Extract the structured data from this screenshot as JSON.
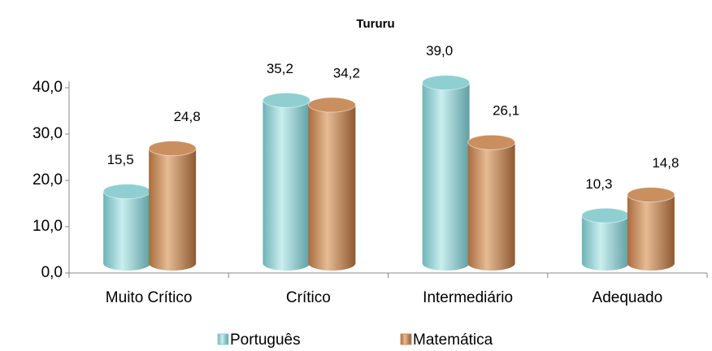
{
  "chart_data": {
    "type": "bar",
    "title": "Tururu",
    "categories": [
      "Muito Crítico",
      "Crítico",
      "Intermediário",
      "Adequado"
    ],
    "series": [
      {
        "name": "Português",
        "color": "#8fcfd2",
        "values": [
          15.5,
          35.2,
          39.0,
          10.3
        ],
        "value_labels": [
          "15,5",
          "35,2",
          "39,0",
          "10,3"
        ]
      },
      {
        "name": "Matemática",
        "color": "#c98f5e",
        "values": [
          24.8,
          34.2,
          26.1,
          14.8
        ],
        "value_labels": [
          "24,8",
          "34,2",
          "26,1",
          "14,8"
        ]
      }
    ],
    "ylim": [
      0,
      40
    ],
    "yticks": [
      {
        "value": 0,
        "label": "0,0"
      },
      {
        "value": 10,
        "label": "10,0"
      },
      {
        "value": 20,
        "label": "20,0"
      },
      {
        "value": 30,
        "label": "30,0"
      },
      {
        "value": 40,
        "label": "40,0"
      }
    ],
    "legend": "bottom"
  }
}
